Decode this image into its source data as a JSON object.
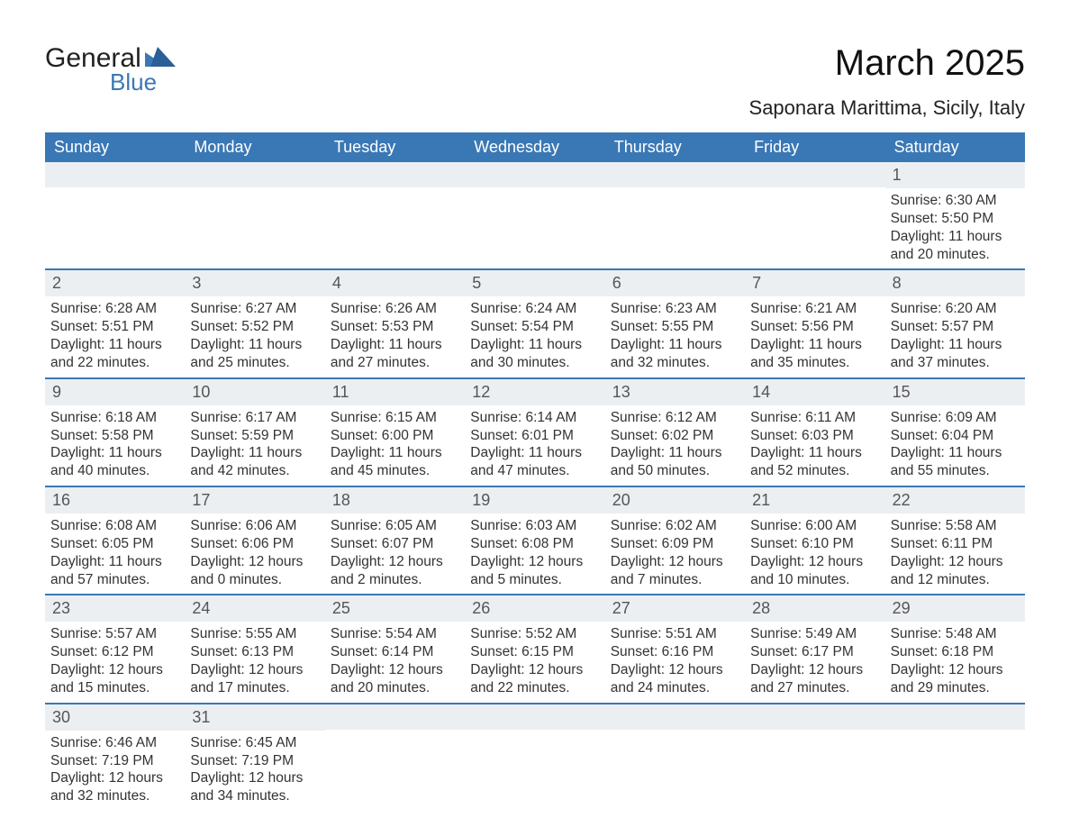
{
  "brand": {
    "word1": "General",
    "word2": "Blue"
  },
  "title": "March 2025",
  "subtitle": "Saponara Marittima, Sicily, Italy",
  "colors": {
    "header_bg": "#3a78b5",
    "header_text": "#ffffff",
    "band_bg": "#eceff2",
    "row_divider": "#3a78b5",
    "body_text": "#333333",
    "title_text": "#111111",
    "logo_blue": "#3a78b5",
    "page_bg": "#ffffff"
  },
  "fonts": {
    "family": "Arial, Helvetica, sans-serif",
    "title_size_pt": 30,
    "subtitle_size_pt": 16,
    "dow_size_pt": 14,
    "daynum_size_pt": 14,
    "body_size_pt": 11.5
  },
  "calendar": {
    "type": "table",
    "dow": [
      "Sunday",
      "Monday",
      "Tuesday",
      "Wednesday",
      "Thursday",
      "Friday",
      "Saturday"
    ],
    "weeks": [
      [
        null,
        null,
        null,
        null,
        null,
        null,
        {
          "n": "1",
          "sunrise": "Sunrise: 6:30 AM",
          "sunset": "Sunset: 5:50 PM",
          "dl1": "Daylight: 11 hours",
          "dl2": "and 20 minutes."
        }
      ],
      [
        {
          "n": "2",
          "sunrise": "Sunrise: 6:28 AM",
          "sunset": "Sunset: 5:51 PM",
          "dl1": "Daylight: 11 hours",
          "dl2": "and 22 minutes."
        },
        {
          "n": "3",
          "sunrise": "Sunrise: 6:27 AM",
          "sunset": "Sunset: 5:52 PM",
          "dl1": "Daylight: 11 hours",
          "dl2": "and 25 minutes."
        },
        {
          "n": "4",
          "sunrise": "Sunrise: 6:26 AM",
          "sunset": "Sunset: 5:53 PM",
          "dl1": "Daylight: 11 hours",
          "dl2": "and 27 minutes."
        },
        {
          "n": "5",
          "sunrise": "Sunrise: 6:24 AM",
          "sunset": "Sunset: 5:54 PM",
          "dl1": "Daylight: 11 hours",
          "dl2": "and 30 minutes."
        },
        {
          "n": "6",
          "sunrise": "Sunrise: 6:23 AM",
          "sunset": "Sunset: 5:55 PM",
          "dl1": "Daylight: 11 hours",
          "dl2": "and 32 minutes."
        },
        {
          "n": "7",
          "sunrise": "Sunrise: 6:21 AM",
          "sunset": "Sunset: 5:56 PM",
          "dl1": "Daylight: 11 hours",
          "dl2": "and 35 minutes."
        },
        {
          "n": "8",
          "sunrise": "Sunrise: 6:20 AM",
          "sunset": "Sunset: 5:57 PM",
          "dl1": "Daylight: 11 hours",
          "dl2": "and 37 minutes."
        }
      ],
      [
        {
          "n": "9",
          "sunrise": "Sunrise: 6:18 AM",
          "sunset": "Sunset: 5:58 PM",
          "dl1": "Daylight: 11 hours",
          "dl2": "and 40 minutes."
        },
        {
          "n": "10",
          "sunrise": "Sunrise: 6:17 AM",
          "sunset": "Sunset: 5:59 PM",
          "dl1": "Daylight: 11 hours",
          "dl2": "and 42 minutes."
        },
        {
          "n": "11",
          "sunrise": "Sunrise: 6:15 AM",
          "sunset": "Sunset: 6:00 PM",
          "dl1": "Daylight: 11 hours",
          "dl2": "and 45 minutes."
        },
        {
          "n": "12",
          "sunrise": "Sunrise: 6:14 AM",
          "sunset": "Sunset: 6:01 PM",
          "dl1": "Daylight: 11 hours",
          "dl2": "and 47 minutes."
        },
        {
          "n": "13",
          "sunrise": "Sunrise: 6:12 AM",
          "sunset": "Sunset: 6:02 PM",
          "dl1": "Daylight: 11 hours",
          "dl2": "and 50 minutes."
        },
        {
          "n": "14",
          "sunrise": "Sunrise: 6:11 AM",
          "sunset": "Sunset: 6:03 PM",
          "dl1": "Daylight: 11 hours",
          "dl2": "and 52 minutes."
        },
        {
          "n": "15",
          "sunrise": "Sunrise: 6:09 AM",
          "sunset": "Sunset: 6:04 PM",
          "dl1": "Daylight: 11 hours",
          "dl2": "and 55 minutes."
        }
      ],
      [
        {
          "n": "16",
          "sunrise": "Sunrise: 6:08 AM",
          "sunset": "Sunset: 6:05 PM",
          "dl1": "Daylight: 11 hours",
          "dl2": "and 57 minutes."
        },
        {
          "n": "17",
          "sunrise": "Sunrise: 6:06 AM",
          "sunset": "Sunset: 6:06 PM",
          "dl1": "Daylight: 12 hours",
          "dl2": "and 0 minutes."
        },
        {
          "n": "18",
          "sunrise": "Sunrise: 6:05 AM",
          "sunset": "Sunset: 6:07 PM",
          "dl1": "Daylight: 12 hours",
          "dl2": "and 2 minutes."
        },
        {
          "n": "19",
          "sunrise": "Sunrise: 6:03 AM",
          "sunset": "Sunset: 6:08 PM",
          "dl1": "Daylight: 12 hours",
          "dl2": "and 5 minutes."
        },
        {
          "n": "20",
          "sunrise": "Sunrise: 6:02 AM",
          "sunset": "Sunset: 6:09 PM",
          "dl1": "Daylight: 12 hours",
          "dl2": "and 7 minutes."
        },
        {
          "n": "21",
          "sunrise": "Sunrise: 6:00 AM",
          "sunset": "Sunset: 6:10 PM",
          "dl1": "Daylight: 12 hours",
          "dl2": "and 10 minutes."
        },
        {
          "n": "22",
          "sunrise": "Sunrise: 5:58 AM",
          "sunset": "Sunset: 6:11 PM",
          "dl1": "Daylight: 12 hours",
          "dl2": "and 12 minutes."
        }
      ],
      [
        {
          "n": "23",
          "sunrise": "Sunrise: 5:57 AM",
          "sunset": "Sunset: 6:12 PM",
          "dl1": "Daylight: 12 hours",
          "dl2": "and 15 minutes."
        },
        {
          "n": "24",
          "sunrise": "Sunrise: 5:55 AM",
          "sunset": "Sunset: 6:13 PM",
          "dl1": "Daylight: 12 hours",
          "dl2": "and 17 minutes."
        },
        {
          "n": "25",
          "sunrise": "Sunrise: 5:54 AM",
          "sunset": "Sunset: 6:14 PM",
          "dl1": "Daylight: 12 hours",
          "dl2": "and 20 minutes."
        },
        {
          "n": "26",
          "sunrise": "Sunrise: 5:52 AM",
          "sunset": "Sunset: 6:15 PM",
          "dl1": "Daylight: 12 hours",
          "dl2": "and 22 minutes."
        },
        {
          "n": "27",
          "sunrise": "Sunrise: 5:51 AM",
          "sunset": "Sunset: 6:16 PM",
          "dl1": "Daylight: 12 hours",
          "dl2": "and 24 minutes."
        },
        {
          "n": "28",
          "sunrise": "Sunrise: 5:49 AM",
          "sunset": "Sunset: 6:17 PM",
          "dl1": "Daylight: 12 hours",
          "dl2": "and 27 minutes."
        },
        {
          "n": "29",
          "sunrise": "Sunrise: 5:48 AM",
          "sunset": "Sunset: 6:18 PM",
          "dl1": "Daylight: 12 hours",
          "dl2": "and 29 minutes."
        }
      ],
      [
        {
          "n": "30",
          "sunrise": "Sunrise: 6:46 AM",
          "sunset": "Sunset: 7:19 PM",
          "dl1": "Daylight: 12 hours",
          "dl2": "and 32 minutes."
        },
        {
          "n": "31",
          "sunrise": "Sunrise: 6:45 AM",
          "sunset": "Sunset: 7:19 PM",
          "dl1": "Daylight: 12 hours",
          "dl2": "and 34 minutes."
        },
        null,
        null,
        null,
        null,
        null
      ]
    ]
  }
}
